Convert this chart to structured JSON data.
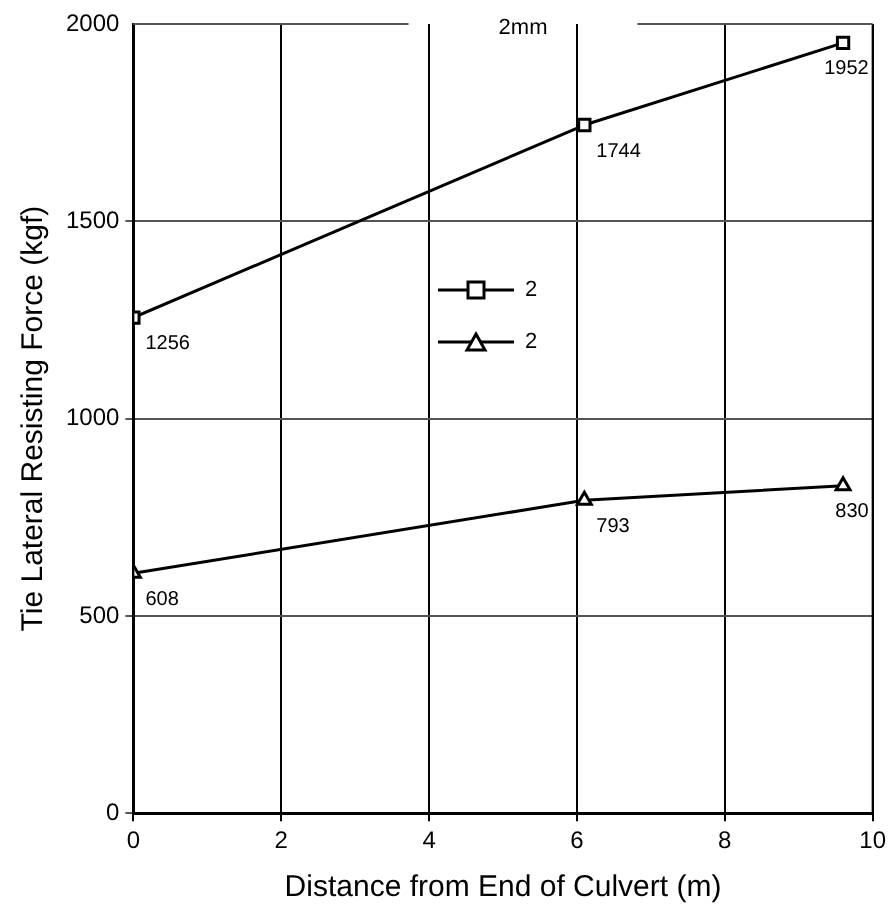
{
  "chart_data": {
    "type": "line",
    "title": "2mm",
    "xlabel": "Distance from End of Culvert (m)",
    "ylabel": "Tie Lateral Resisting Force (kgf)",
    "xlim": [
      0,
      10
    ],
    "xticks": [
      0,
      2,
      4,
      6,
      8,
      10
    ],
    "ylim": [
      0,
      2000
    ],
    "yticks": [
      0,
      500,
      1000,
      1500,
      2000
    ],
    "grid": true,
    "legend": "center",
    "data_labels": true,
    "line_style": "solid",
    "series": [
      {
        "name": "2",
        "color": "#000000",
        "marker": "square",
        "x": [
          0,
          6.1,
          9.6
        ],
        "values": [
          1256,
          1744,
          1952
        ]
      },
      {
        "name": "2",
        "color": "#000000",
        "marker": "triangle",
        "x": [
          0,
          6.1,
          9.6
        ],
        "values": [
          608,
          793,
          830
        ]
      }
    ]
  }
}
